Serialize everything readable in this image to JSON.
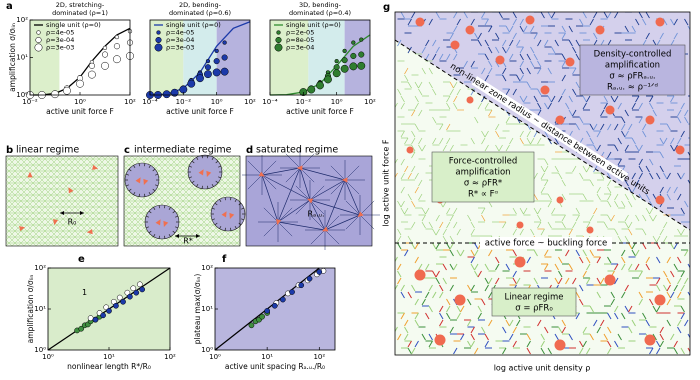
{
  "panel_labels": [
    "a",
    "b",
    "c",
    "d",
    "e",
    "f",
    "g"
  ],
  "chart_data": [
    {
      "type": "line",
      "title": [
        "2D, stretching-",
        "dominated (ρ=1)"
      ],
      "xlabel": "active unit force F",
      "ylabel": "amplification σ/σₗᵢₙ",
      "xscale": "log",
      "yscale": "log",
      "xlim": [
        0.01,
        100
      ],
      "ylim": [
        1,
        100
      ],
      "xticks": [
        {
          "value": 0.01,
          "label": "10⁻²"
        },
        {
          "value": 1,
          "label": "10⁰"
        },
        {
          "value": 100,
          "label": "10²"
        }
      ],
      "yticks": [
        {
          "value": 1,
          "label": "10⁰"
        },
        {
          "value": 10,
          "label": "10¹"
        },
        {
          "value": 100,
          "label": "10²"
        }
      ],
      "regions": [
        {
          "x": [
            0.01,
            0.15
          ],
          "color": "#dcefcb"
        }
      ],
      "series": [
        {
          "name": "single unit (ρ=0)",
          "style": "line",
          "color": "#000000",
          "x": [
            0.01,
            0.03,
            0.1,
            0.3,
            1,
            3,
            10,
            30,
            100
          ],
          "values": [
            1,
            1,
            1.1,
            1.5,
            3,
            8,
            20,
            40,
            60
          ]
        },
        {
          "name": "ρ=4e-05",
          "style": "marker",
          "color": "#ffffff",
          "x": [
            0.01,
            0.03,
            0.1,
            0.3,
            1,
            3,
            10,
            30,
            100
          ],
          "values": [
            1,
            1,
            1.1,
            1.5,
            3,
            7.5,
            18,
            35,
            50
          ]
        },
        {
          "name": "ρ=3e-04",
          "style": "marker",
          "color": "#ffffff",
          "x": [
            0.01,
            0.03,
            0.1,
            0.3,
            1,
            3,
            10,
            30,
            100
          ],
          "values": [
            1,
            1,
            1.1,
            1.5,
            2.8,
            6,
            12,
            20,
            25
          ]
        },
        {
          "name": "ρ=3e-03",
          "style": "marker",
          "color": "#ffffff",
          "x": [
            0.01,
            0.03,
            0.1,
            0.3,
            1,
            3,
            10,
            30,
            100
          ],
          "values": [
            1,
            1,
            1.05,
            1.3,
            2,
            3.5,
            6,
            9,
            11
          ]
        }
      ]
    },
    {
      "type": "line",
      "title": [
        "2D, bending-",
        "dominated (ρ=0.6)"
      ],
      "xlabel": "active unit force F",
      "xscale": "log",
      "yscale": "log",
      "xlim": [
        0.0001,
        100
      ],
      "ylim": [
        1,
        100
      ],
      "xticks": [
        {
          "value": 0.0001,
          "label": "10⁻⁴"
        },
        {
          "value": 0.01,
          "label": "10⁻²"
        },
        {
          "value": 1,
          "label": "10⁰"
        },
        {
          "value": 100,
          "label": "10²"
        }
      ],
      "regions": [
        {
          "x": [
            0.0001,
            0.01
          ],
          "color": "#dcefcb"
        },
        {
          "x": [
            0.01,
            1
          ],
          "color": "#d3ecec"
        },
        {
          "x": [
            1,
            100
          ],
          "color": "#b6b3de"
        }
      ],
      "series": [
        {
          "name": "single unit (ρ=0)",
          "style": "line",
          "color": "#1c3aa9",
          "x": [
            0.0001,
            0.001,
            0.01,
            0.1,
            1,
            10,
            100
          ],
          "values": [
            1,
            1.05,
            1.5,
            4,
            20,
            60,
            90
          ]
        },
        {
          "name": "ρ=4e-05",
          "style": "marker",
          "color": "#1c3aa9",
          "x": [
            0.0001,
            0.0003,
            0.001,
            0.003,
            0.01,
            0.03,
            0.1,
            0.3,
            1,
            3
          ],
          "values": [
            1,
            1,
            1.05,
            1.2,
            1.5,
            2.5,
            4,
            8,
            15,
            25
          ]
        },
        {
          "name": "ρ=3e-04",
          "style": "marker",
          "color": "#1c3aa9",
          "x": [
            0.0001,
            0.0003,
            0.001,
            0.003,
            0.01,
            0.03,
            0.1,
            0.3,
            1,
            3
          ],
          "values": [
            1,
            1,
            1.05,
            1.2,
            1.5,
            2.3,
            3.5,
            5.5,
            8,
            10
          ]
        },
        {
          "name": "ρ=3e-03",
          "style": "marker",
          "color": "#1c3aa9",
          "x": [
            0.0001,
            0.0003,
            0.001,
            0.003,
            0.01,
            0.03,
            0.1,
            0.3,
            1,
            3
          ],
          "values": [
            1,
            1,
            1.05,
            1.15,
            1.4,
            2,
            2.8,
            3.6,
            4,
            4.2
          ]
        }
      ]
    },
    {
      "type": "line",
      "title": [
        "3D, bending-",
        "dominated (ρ=0.4)"
      ],
      "xlabel": "active unit force F",
      "xscale": "log",
      "yscale": "log",
      "xlim": [
        0.0001,
        100
      ],
      "ylim": [
        1,
        100
      ],
      "xticks": [
        {
          "value": 0.0001,
          "label": "10⁻⁴"
        },
        {
          "value": 0.01,
          "label": "10⁻²"
        },
        {
          "value": 1,
          "label": "10⁰"
        },
        {
          "value": 100,
          "label": "10²"
        }
      ],
      "regions": [
        {
          "x": [
            0.0001,
            0.02
          ],
          "color": "#dcefcb"
        },
        {
          "x": [
            0.02,
            3
          ],
          "color": "#d3ecec"
        },
        {
          "x": [
            3,
            100
          ],
          "color": "#b6b3de"
        }
      ],
      "series": [
        {
          "name": "single unit (ρ=0)",
          "style": "line",
          "color": "#2f8a2f",
          "x": [
            0.0001,
            0.001,
            0.01,
            0.1,
            1,
            10,
            100
          ],
          "values": [
            1,
            1.02,
            1.2,
            2,
            6,
            20,
            40
          ]
        },
        {
          "name": "ρ=2e-05",
          "style": "marker",
          "color": "#2f7d2f",
          "x": [
            0.01,
            0.03,
            0.1,
            0.3,
            1,
            3,
            10,
            30
          ],
          "values": [
            1.2,
            1.5,
            2.2,
            4,
            8,
            15,
            25,
            30
          ]
        },
        {
          "name": "ρ=8e-05",
          "style": "marker",
          "color": "#2f7d2f",
          "x": [
            0.01,
            0.03,
            0.1,
            0.3,
            1,
            3,
            10,
            30
          ],
          "values": [
            1.2,
            1.5,
            2,
            3.2,
            5.5,
            8.5,
            11,
            12
          ]
        },
        {
          "name": "ρ=3e-04",
          "style": "marker",
          "color": "#2f7d2f",
          "x": [
            0.01,
            0.03,
            0.1,
            0.3,
            1,
            3,
            10,
            30
          ],
          "values": [
            1.2,
            1.4,
            1.8,
            2.6,
            3.8,
            5,
            5.8,
            6
          ]
        }
      ]
    },
    {
      "type": "scatter",
      "xlabel": "nonlinear length R*/R₀",
      "ylabel": "amplification σ/σₗᵢₙ",
      "annotation": "1",
      "xscale": "log",
      "yscale": "log",
      "xlim": [
        1,
        100
      ],
      "ylim": [
        1,
        100
      ],
      "facecolor": "#d9eccb",
      "diagonal": true,
      "xticks": [
        {
          "value": 1,
          "label": "10⁰"
        },
        {
          "value": 10,
          "label": "10¹"
        },
        {
          "value": 100,
          "label": "10²"
        }
      ],
      "yticks": [
        {
          "value": 1,
          "label": "10⁰"
        },
        {
          "value": 10,
          "label": "10¹"
        },
        {
          "value": 100,
          "label": "10²"
        }
      ],
      "series": [
        {
          "color": "#3f8f3f",
          "x": [
            3,
            3.5,
            4,
            4.5,
            5,
            6,
            7
          ],
          "values": [
            3,
            3.3,
            4,
            4.2,
            5,
            5.5,
            6.5
          ]
        },
        {
          "color": "#ffffff",
          "x": [
            5,
            7,
            9,
            12,
            15,
            20,
            25,
            32
          ],
          "values": [
            6,
            8,
            11,
            15,
            19,
            25,
            32,
            40
          ]
        },
        {
          "color": "#1c3aa9",
          "x": [
            6,
            8,
            10,
            13,
            17,
            22,
            28,
            35
          ],
          "values": [
            5.5,
            7,
            9,
            12,
            15,
            20,
            25,
            30
          ]
        }
      ]
    },
    {
      "type": "scatter",
      "xlabel": "active unit spacing Rₐ.ᵤ./R₀",
      "ylabel": "plateau max(σ/σₗᵢₙ)",
      "xscale": "log",
      "yscale": "log",
      "xlim": [
        1,
        200
      ],
      "ylim": [
        1,
        100
      ],
      "facecolor": "#b9b6de",
      "diagonal": true,
      "xticks": [
        {
          "value": 1,
          "label": "10⁰"
        },
        {
          "value": 10,
          "label": "10¹"
        },
        {
          "value": 100,
          "label": "10²"
        }
      ],
      "yticks": [
        {
          "value": 1,
          "label": "10⁰"
        },
        {
          "value": 10,
          "label": "10¹"
        },
        {
          "value": 100,
          "label": "10²"
        }
      ],
      "series": [
        {
          "color": "#3f8f3f",
          "x": [
            5,
            6,
            7,
            8,
            10
          ],
          "values": [
            4,
            5,
            5.5,
            6.5,
            8
          ]
        },
        {
          "color": "#ffffff",
          "x": [
            15,
            25,
            40,
            60,
            90,
            120
          ],
          "values": [
            14,
            24,
            38,
            50,
            70,
            85
          ]
        },
        {
          "color": "#1c3aa9",
          "x": [
            10,
            14,
            20,
            30,
            45,
            65,
            100
          ],
          "values": [
            9,
            12,
            17,
            26,
            38,
            55,
            80
          ]
        }
      ]
    }
  ],
  "schematics": {
    "b": {
      "title": "linear regime",
      "length": "R₀"
    },
    "c": {
      "title": "intermediate regime",
      "length": "R*"
    },
    "d": {
      "title": "saturated regime",
      "length": "Rₐ.ᵤ."
    }
  },
  "phase_diagram": {
    "ylabel": "log active unit force F",
    "xlabel": "log active unit density ρ",
    "diagonal_label": "non-linear zone radius ~ distance between active units",
    "horizontal_label": "active force ~ buckling force",
    "density_box": [
      "Density-controlled",
      "amplification",
      "σ ≈ ρFRₐ.ᵤ.",
      "Rₐ.ᵤ. ≈ ρ⁻¹ᐟᵈ"
    ],
    "force_box": [
      "Force-controlled",
      "amplification",
      "σ ≈ ρFR*",
      "R* ∝ Fᵅ"
    ],
    "linear_box": [
      "Linear regime",
      "σ = ρFR₀"
    ]
  }
}
